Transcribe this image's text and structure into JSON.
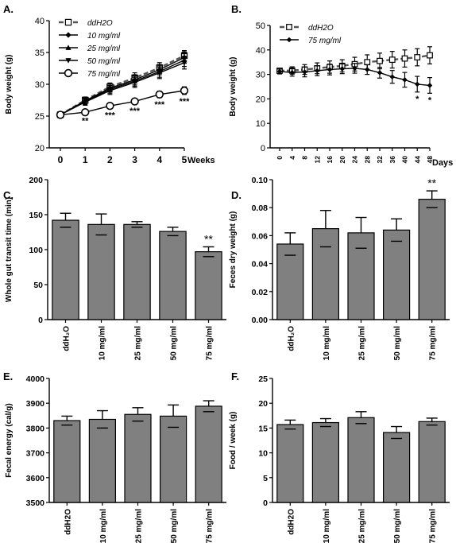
{
  "chart_data": [
    {
      "id": "A",
      "panel_label": "A.",
      "type": "line",
      "xlabel": "Weeks",
      "ylabel": "Body weight (g)",
      "x": [
        0,
        1,
        2,
        3,
        4,
        5
      ],
      "xticks": [
        "0",
        "1",
        "2",
        "3",
        "4",
        "5"
      ],
      "ylim": [
        20,
        40
      ],
      "yticks": [
        "20",
        "25",
        "30",
        "35",
        "40"
      ],
      "legend_position": "top-left",
      "series": [
        {
          "name": "ddH2O",
          "values": [
            25.2,
            27.5,
            29.6,
            31.0,
            32.6,
            34.5
          ],
          "err": [
            0.3,
            0.5,
            0.6,
            0.8,
            0.8,
            0.8
          ],
          "marker": "square",
          "dashed": true
        },
        {
          "name": "10 mg/ml",
          "values": [
            25.2,
            27.4,
            29.4,
            30.7,
            32.3,
            34.2
          ],
          "err": [
            0.3,
            0.5,
            0.6,
            0.8,
            0.8,
            0.9
          ],
          "marker": "diamond"
        },
        {
          "name": "25 mg/ml",
          "values": [
            25.2,
            27.3,
            29.2,
            30.5,
            32.0,
            33.8
          ],
          "err": [
            0.3,
            0.5,
            0.6,
            0.8,
            0.9,
            1.0
          ],
          "marker": "triangle-up"
        },
        {
          "name": "50 mg/ml",
          "values": [
            25.2,
            27.2,
            29.0,
            30.3,
            31.8,
            33.4
          ],
          "err": [
            0.3,
            0.5,
            0.6,
            0.8,
            0.9,
            1.0
          ],
          "marker": "triangle-down"
        },
        {
          "name": "75 mg/ml",
          "values": [
            25.2,
            25.6,
            26.6,
            27.3,
            28.4,
            29.0
          ],
          "err": [
            0.3,
            0.3,
            0.4,
            0.4,
            0.5,
            0.6
          ],
          "marker": "circle"
        }
      ],
      "annotations": [
        {
          "x": 1,
          "text": "**"
        },
        {
          "x": 2,
          "text": "***"
        },
        {
          "x": 3,
          "text": "***"
        },
        {
          "x": 4,
          "text": "***"
        },
        {
          "x": 5,
          "text": "***"
        }
      ]
    },
    {
      "id": "B",
      "panel_label": "B.",
      "type": "line",
      "xlabel": "Days",
      "ylabel": "Body weight (g)",
      "x": [
        0,
        4,
        8,
        12,
        16,
        20,
        24,
        28,
        32,
        36,
        40,
        44,
        48
      ],
      "xticks": [
        "0",
        "4",
        "8",
        "12",
        "16",
        "20",
        "24",
        "28",
        "32",
        "36",
        "40",
        "44",
        "48"
      ],
      "ylim": [
        0,
        50
      ],
      "yticks": [
        "0",
        "10",
        "20",
        "30",
        "40",
        "50"
      ],
      "legend_position": "top-left",
      "series": [
        {
          "name": "ddH2O",
          "values": [
            31.5,
            31.6,
            32.0,
            32.5,
            33.0,
            33.5,
            34.2,
            35.0,
            35.5,
            36.0,
            36.5,
            37.0,
            37.8
          ],
          "err": [
            1.0,
            1.5,
            2.0,
            2.2,
            2.5,
            2.5,
            2.8,
            3.0,
            3.2,
            3.4,
            3.5,
            3.5,
            3.5
          ],
          "marker": "square",
          "dashed": true
        },
        {
          "name": "75 mg/ml",
          "values": [
            31.2,
            30.8,
            31.0,
            31.5,
            32.0,
            32.3,
            32.5,
            32.0,
            30.7,
            29.0,
            27.8,
            26.0,
            25.5
          ],
          "err": [
            1.0,
            1.5,
            2.0,
            2.0,
            2.2,
            2.0,
            2.0,
            2.0,
            2.2,
            2.6,
            3.0,
            3.2,
            3.2
          ],
          "marker": "diamond"
        }
      ],
      "annotations": [
        {
          "x": 44,
          "text": "*"
        },
        {
          "x": 48,
          "text": "*"
        }
      ]
    },
    {
      "id": "C",
      "panel_label": "C.",
      "type": "bar",
      "ylabel": "Whole gut transit time (min)",
      "categories": [
        "ddH₂O",
        "10 mg/ml",
        "25 mg/ml",
        "50 mg/ml",
        "75 mg/ml"
      ],
      "values": [
        142,
        136,
        136,
        126,
        97
      ],
      "err": [
        10,
        15,
        4,
        6,
        7
      ],
      "ylim": [
        0,
        200
      ],
      "yticks": [
        "0",
        "50",
        "100",
        "150",
        "200"
      ],
      "annotations": [
        {
          "index": 4,
          "text": "**"
        }
      ]
    },
    {
      "id": "D",
      "panel_label": "D.",
      "type": "bar",
      "ylabel": "Feces dry weight (g)",
      "categories": [
        "ddH₂O",
        "10 mg/ml",
        "25 mg/ml",
        "50 mg/ml",
        "75 mg/ml"
      ],
      "values": [
        0.054,
        0.065,
        0.062,
        0.064,
        0.086
      ],
      "err": [
        0.008,
        0.013,
        0.011,
        0.008,
        0.006
      ],
      "ylim": [
        0,
        0.1
      ],
      "yticks": [
        "0.00",
        "0.02",
        "0.04",
        "0.06",
        "0.08",
        "0.10"
      ],
      "annotations": [
        {
          "index": 4,
          "text": "**"
        }
      ]
    },
    {
      "id": "E",
      "panel_label": "E.",
      "type": "bar",
      "ylabel": "Fecal energy (cal/g)",
      "categories": [
        "ddH2O",
        "10 mg/ml",
        "25 mg/ml",
        "50 mg/ml",
        "75 mg/ml"
      ],
      "values": [
        3830,
        3835,
        3855,
        3848,
        3888
      ],
      "err": [
        18,
        35,
        27,
        45,
        22
      ],
      "ylim": [
        3500,
        4000
      ],
      "yticks": [
        "3500",
        "3600",
        "3700",
        "3800",
        "3900",
        "4000"
      ],
      "annotations": []
    },
    {
      "id": "F",
      "panel_label": "F.",
      "type": "bar",
      "ylabel": "Food / week (g)",
      "categories": [
        "ddH2O",
        "10 mg/ml",
        "25 mg/ml",
        "50 mg/ml",
        "75 mg/ml"
      ],
      "values": [
        15.7,
        16.1,
        17.1,
        14.1,
        16.3
      ],
      "err": [
        0.9,
        0.8,
        1.2,
        1.2,
        0.7
      ],
      "ylim": [
        0,
        25
      ],
      "yticks": [
        "0",
        "5",
        "10",
        "15",
        "20",
        "25"
      ],
      "annotations": []
    }
  ]
}
